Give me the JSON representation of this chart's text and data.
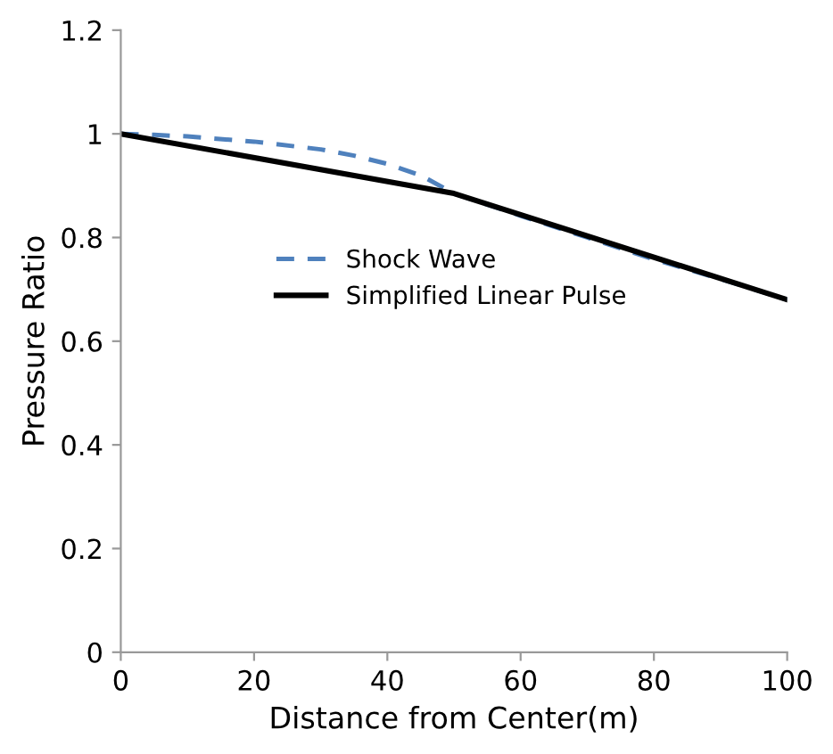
{
  "chart_data": {
    "type": "line",
    "xlabel": "Distance from Center(m)",
    "ylabel": "Pressure Ratio",
    "xlim": [
      0,
      100
    ],
    "xticks": [
      0,
      20,
      40,
      60,
      80,
      100
    ],
    "ylim": [
      0,
      1.2
    ],
    "yticks": [
      0,
      0.2,
      0.4,
      0.6,
      0.8,
      1,
      1.2
    ],
    "grid": false,
    "legend": "center left",
    "marker": "none",
    "series": [
      {
        "name": "Shock Wave",
        "color": "#4f81bd",
        "line_style": "dashed",
        "x": [
          0,
          5,
          10,
          20,
          30,
          35,
          40,
          45,
          50,
          60,
          70,
          80,
          90,
          100
        ],
        "values": [
          1,
          0.998,
          0.995,
          0.985,
          0.97,
          0.958,
          0.942,
          0.92,
          0.885,
          0.842,
          0.8,
          0.758,
          0.72,
          0.68
        ]
      },
      {
        "name": "Simplified Linear Pulse",
        "color": "#000000",
        "line_style": "solid",
        "x": [
          0,
          50,
          100
        ],
        "values": [
          1,
          0.885,
          0.68
        ]
      }
    ]
  }
}
